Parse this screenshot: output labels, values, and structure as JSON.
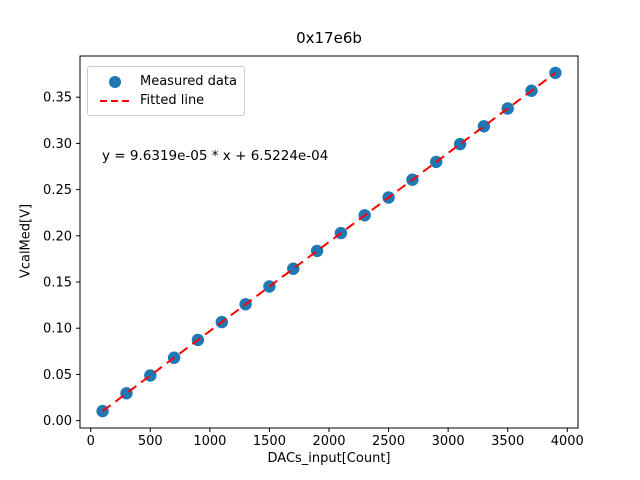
{
  "chart_data": {
    "type": "scatter",
    "title": "0x17e6b",
    "xlabel": "DACs_input[Count]",
    "ylabel": "VcalMed[V]",
    "x": [
      100,
      300,
      500,
      700,
      900,
      1100,
      1300,
      1500,
      1700,
      1900,
      2100,
      2300,
      2500,
      2700,
      2900,
      3100,
      3300,
      3500,
      3700,
      3900
    ],
    "y": [
      0.01028,
      0.02955,
      0.04881,
      0.06808,
      0.08734,
      0.1066,
      0.12587,
      0.14513,
      0.16439,
      0.18366,
      0.20292,
      0.22219,
      0.24145,
      0.26071,
      0.27998,
      0.29924,
      0.3185,
      0.33777,
      0.35703,
      0.3763
    ],
    "fit": {
      "slope": 9.6319e-05,
      "intercept": 0.00065224,
      "equation": "y = 9.6319e-05 * x + 6.5224e-04"
    },
    "legend": {
      "position": "upper left",
      "entries": [
        "Measured data",
        "Fitted line"
      ]
    },
    "xlim": [
      -90,
      4090
    ],
    "ylim": [
      -0.008,
      0.3946
    ],
    "x_ticks": [
      0,
      500,
      1000,
      1500,
      2000,
      2500,
      3000,
      3500,
      4000
    ],
    "x_tick_labels": [
      "0",
      "500",
      "1000",
      "1500",
      "2000",
      "2500",
      "3000",
      "3500",
      "4000"
    ],
    "y_ticks": [
      0.0,
      0.05,
      0.1,
      0.15,
      0.2,
      0.25,
      0.3,
      0.35
    ],
    "y_tick_labels": [
      "0.00",
      "0.05",
      "0.10",
      "0.15",
      "0.20",
      "0.25",
      "0.30",
      "0.35"
    ],
    "grid": false,
    "colors": {
      "marker": "#1f77b4",
      "fit_line": "#ff0000",
      "axes": "#000000",
      "background": "#ffffff"
    }
  }
}
